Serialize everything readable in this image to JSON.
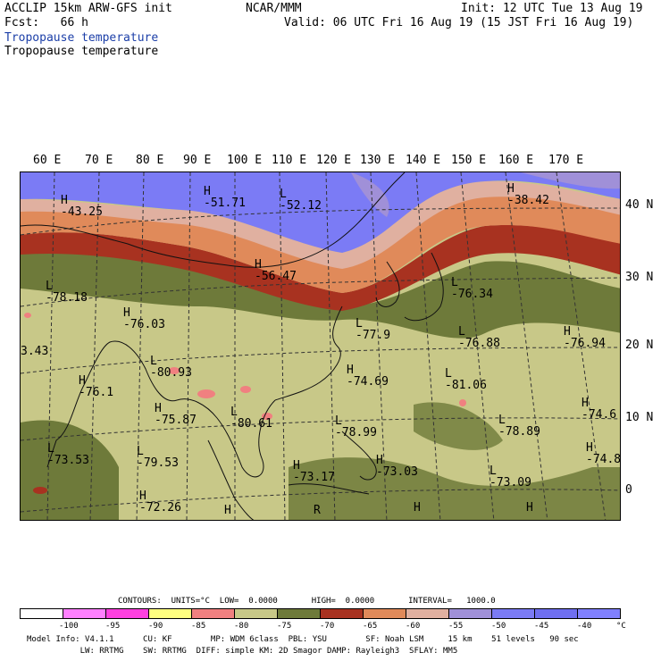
{
  "header": {
    "line1_left": "ACCLIP 15km ARW-GFS init",
    "line1_center": "NCAR/MMM",
    "line1_right": "Init: 12 UTC Tue 13 Aug 19",
    "line2_left": "Fcst:   66 h",
    "line2_right": "Valid: 06 UTC Fri 16 Aug 19 (15 JST Fri 16 Aug 19)",
    "field_title_1": "Tropopause temperature",
    "field_title_2": "Tropopause temperature"
  },
  "lon_labels": [
    "60 E",
    "70 E",
    "80 E",
    "90 E",
    "100 E",
    "110 E",
    "120 E",
    "130 E",
    "140 E",
    "150 E",
    "160 E",
    "170 E"
  ],
  "lat_labels": [
    "40 N",
    "30 N",
    "20 N",
    "10 N",
    "0"
  ],
  "map_labels": [
    {
      "mark": "H",
      "value": "-43.25"
    },
    {
      "mark": "H",
      "value": "-51.71"
    },
    {
      "mark": "L",
      "value": "-52.12"
    },
    {
      "mark": "H",
      "value": "-38.42"
    },
    {
      "mark": "H",
      "value": "-56.47"
    },
    {
      "mark": "L",
      "value": "-78.18"
    },
    {
      "mark": "H",
      "value": "-76.03"
    },
    {
      "mark": "L",
      "value": "-76.34"
    },
    {
      "mark": "L",
      "value": "-77.9"
    },
    {
      "mark": "L",
      "value": "-76.88"
    },
    {
      "mark": "H",
      "value": "-76.94"
    },
    {
      "mark": "",
      "value": "3.43"
    },
    {
      "mark": "L",
      "value": "-80.93"
    },
    {
      "mark": "H",
      "value": "-74.69"
    },
    {
      "mark": "H",
      "value": "-76.1"
    },
    {
      "mark": "L",
      "value": "-81.06"
    },
    {
      "mark": "H",
      "value": "-75.87"
    },
    {
      "mark": "L",
      "value": "-80.61"
    },
    {
      "mark": "H",
      "value": "-74.6"
    },
    {
      "mark": "L",
      "value": "-78.99"
    },
    {
      "mark": "L",
      "value": "-78.89"
    },
    {
      "mark": "L",
      "value": "-73.53"
    },
    {
      "mark": "L",
      "value": "-79.53"
    },
    {
      "mark": "H",
      "value": "-73.03"
    },
    {
      "mark": "H",
      "value": "-74.8"
    },
    {
      "mark": "H",
      "value": "-73.17"
    },
    {
      "mark": "L",
      "value": "-73.09"
    },
    {
      "mark": "H",
      "value": "-72.26"
    },
    {
      "mark": "H",
      "value": ""
    },
    {
      "mark": "R",
      "value": ""
    },
    {
      "mark": "H",
      "value": ""
    },
    {
      "mark": "H",
      "value": ""
    }
  ],
  "legend": {
    "info": "CONTOURS:  UNITS=°C  LOW=  0.0000       HIGH=  0.0000       INTERVAL=   1000.0",
    "colors": [
      "#ffffff",
      "#ff80ff",
      "#ff40e0",
      "#ffff80",
      "#f08080",
      "#c8c888",
      "#6e7a3a",
      "#a83220",
      "#e08a5a",
      "#e0b0a0",
      "#a090d8",
      "#7b7bf5",
      "#6f6ff0",
      "#8080ff"
    ],
    "ticks": [
      "-100",
      "-95",
      "-90",
      "-85",
      "-80",
      "-75",
      "-70",
      "-65",
      "-60",
      "-55",
      "-50",
      "-45",
      "-40",
      "°C"
    ]
  },
  "footer": {
    "line1": "Model Info: V4.1.1      CU: KF        MP: WDM 6class  PBL: YSU        SF: Noah LSM     15 km    51 levels   90 sec",
    "line2": "           LW: RRTMG    SW: RRTMG  DIFF: simple KM: 2D Smagor DAMP: Rayleigh3  SFLAY: MM5"
  },
  "field_colors": {
    "violet": "#7b7bf5",
    "lavender": "#a090d8",
    "salmon": "#e08a5a",
    "pink_light": "#e0b0a0",
    "red_brown": "#a83220",
    "olive_dark": "#6e7a3a",
    "olive_light": "#c8c888",
    "pink": "#f08080"
  }
}
